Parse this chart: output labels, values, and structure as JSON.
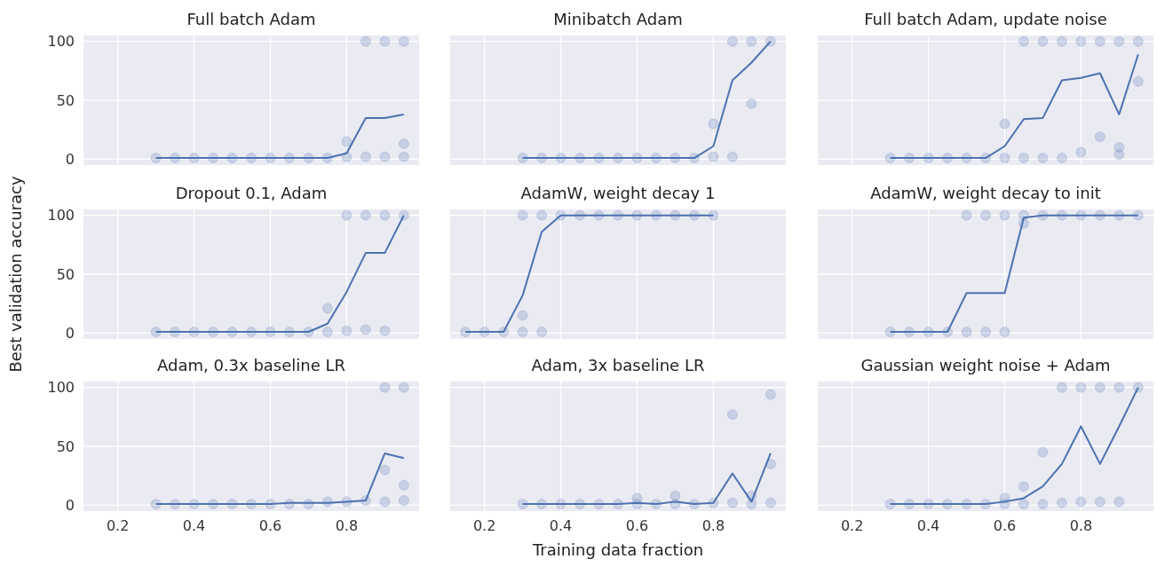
{
  "chart_data": [
    {
      "type": "line",
      "title": "Full batch Adam",
      "xlim": [
        0.11,
        0.99
      ],
      "ylim": [
        -5,
        105
      ],
      "xticks": [
        0.2,
        0.4,
        0.6,
        0.8
      ],
      "yticks": [
        0,
        50,
        100
      ],
      "grid": true,
      "tick_labels": "y",
      "series": [
        {
          "type": "scatter",
          "marker": "circle",
          "color": "#4c72b0",
          "x": [
            0.3,
            0.35,
            0.4,
            0.45,
            0.5,
            0.55,
            0.6,
            0.65,
            0.7,
            0.75,
            0.8,
            0.8,
            0.85,
            0.85,
            0.9,
            0.9,
            0.95,
            0.95,
            0.95
          ],
          "values": [
            1,
            1,
            1,
            1,
            1,
            1,
            1,
            1,
            1,
            1,
            15,
            2,
            100,
            2,
            100,
            2,
            100,
            13,
            2
          ]
        },
        {
          "type": "line",
          "color": "#4c72b0",
          "x": [
            0.3,
            0.35,
            0.4,
            0.45,
            0.5,
            0.55,
            0.6,
            0.65,
            0.7,
            0.75,
            0.8,
            0.85,
            0.9,
            0.95
          ],
          "values": [
            1,
            1,
            1,
            1,
            1,
            1,
            1,
            1,
            1,
            1,
            5,
            35,
            35,
            38
          ]
        }
      ]
    },
    {
      "type": "line",
      "title": "Minibatch Adam",
      "xlim": [
        0.11,
        0.99
      ],
      "ylim": [
        -5,
        105
      ],
      "xticks": [
        0.2,
        0.4,
        0.6,
        0.8
      ],
      "yticks": [
        0,
        50,
        100
      ],
      "grid": true,
      "tick_labels": false,
      "series": [
        {
          "type": "scatter",
          "marker": "circle",
          "color": "#4c72b0",
          "x": [
            0.3,
            0.35,
            0.4,
            0.45,
            0.5,
            0.55,
            0.6,
            0.65,
            0.7,
            0.75,
            0.8,
            0.8,
            0.85,
            0.85,
            0.9,
            0.9,
            0.95
          ],
          "values": [
            1,
            1,
            1,
            1,
            1,
            1,
            1,
            1,
            1,
            1,
            30,
            2,
            100,
            2,
            100,
            47,
            100
          ]
        },
        {
          "type": "line",
          "color": "#4c72b0",
          "x": [
            0.3,
            0.35,
            0.4,
            0.45,
            0.5,
            0.55,
            0.6,
            0.65,
            0.7,
            0.75,
            0.8,
            0.85,
            0.9,
            0.95
          ],
          "values": [
            1,
            1,
            1,
            1,
            1,
            1,
            1,
            1,
            1,
            1,
            11,
            67,
            82,
            100
          ]
        }
      ]
    },
    {
      "type": "line",
      "title": "Full batch Adam, update noise",
      "xlim": [
        0.11,
        0.99
      ],
      "ylim": [
        -5,
        105
      ],
      "xticks": [
        0.2,
        0.4,
        0.6,
        0.8
      ],
      "yticks": [
        0,
        50,
        100
      ],
      "grid": true,
      "tick_labels": false,
      "series": [
        {
          "type": "scatter",
          "marker": "circle",
          "color": "#4c72b0",
          "x": [
            0.3,
            0.35,
            0.4,
            0.45,
            0.5,
            0.55,
            0.6,
            0.6,
            0.65,
            0.65,
            0.7,
            0.7,
            0.75,
            0.75,
            0.8,
            0.8,
            0.85,
            0.85,
            0.9,
            0.9,
            0.9,
            0.95,
            0.95
          ],
          "values": [
            1,
            1,
            1,
            1,
            1,
            1,
            30,
            1,
            100,
            1,
            100,
            1,
            100,
            1,
            100,
            6,
            100,
            19,
            100,
            10,
            4,
            100,
            66
          ]
        },
        {
          "type": "line",
          "color": "#4c72b0",
          "x": [
            0.3,
            0.35,
            0.4,
            0.45,
            0.5,
            0.55,
            0.6,
            0.65,
            0.7,
            0.75,
            0.8,
            0.85,
            0.9,
            0.95
          ],
          "values": [
            1,
            1,
            1,
            1,
            1,
            1,
            11,
            34,
            35,
            67,
            69,
            73,
            38,
            89
          ]
        }
      ]
    },
    {
      "type": "line",
      "title": "Dropout 0.1, Adam",
      "ylabel": "Best validation accuracy",
      "xlim": [
        0.11,
        0.99
      ],
      "ylim": [
        -5,
        105
      ],
      "xticks": [
        0.2,
        0.4,
        0.6,
        0.8
      ],
      "yticks": [
        0,
        50,
        100
      ],
      "grid": true,
      "tick_labels": "y",
      "series": [
        {
          "type": "scatter",
          "marker": "circle",
          "color": "#4c72b0",
          "x": [
            0.3,
            0.35,
            0.4,
            0.45,
            0.5,
            0.55,
            0.6,
            0.65,
            0.7,
            0.75,
            0.75,
            0.8,
            0.8,
            0.85,
            0.85,
            0.9,
            0.9,
            0.95
          ],
          "values": [
            1,
            1,
            1,
            1,
            1,
            1,
            1,
            1,
            1,
            21,
            1,
            100,
            2,
            100,
            3,
            100,
            2,
            100
          ]
        },
        {
          "type": "line",
          "color": "#4c72b0",
          "x": [
            0.3,
            0.35,
            0.4,
            0.45,
            0.5,
            0.55,
            0.6,
            0.65,
            0.7,
            0.75,
            0.8,
            0.85,
            0.9,
            0.95
          ],
          "values": [
            1,
            1,
            1,
            1,
            1,
            1,
            1,
            1,
            1,
            8,
            35,
            68,
            68,
            100
          ]
        }
      ]
    },
    {
      "type": "line",
      "title": "AdamW, weight decay 1",
      "xlim": [
        0.11,
        0.99
      ],
      "ylim": [
        -5,
        105
      ],
      "xticks": [
        0.2,
        0.4,
        0.6,
        0.8
      ],
      "yticks": [
        0,
        50,
        100
      ],
      "grid": true,
      "tick_labels": false,
      "series": [
        {
          "type": "scatter",
          "marker": "circle",
          "color": "#4c72b0",
          "x": [
            0.15,
            0.2,
            0.25,
            0.3,
            0.3,
            0.3,
            0.35,
            0.35,
            0.4,
            0.45,
            0.5,
            0.55,
            0.6,
            0.65,
            0.7,
            0.75,
            0.8
          ],
          "values": [
            1,
            1,
            1,
            100,
            15,
            1,
            100,
            1,
            100,
            100,
            100,
            100,
            100,
            100,
            100,
            100,
            100
          ]
        },
        {
          "type": "line",
          "color": "#4c72b0",
          "x": [
            0.15,
            0.2,
            0.25,
            0.3,
            0.35,
            0.4,
            0.45,
            0.5,
            0.55,
            0.6,
            0.65,
            0.7,
            0.75,
            0.8
          ],
          "values": [
            1,
            1,
            1,
            32,
            86,
            100,
            100,
            100,
            100,
            100,
            100,
            100,
            100,
            100
          ]
        }
      ]
    },
    {
      "type": "line",
      "title": "AdamW, weight decay to init",
      "xlim": [
        0.11,
        0.99
      ],
      "ylim": [
        -5,
        105
      ],
      "xticks": [
        0.2,
        0.4,
        0.6,
        0.8
      ],
      "yticks": [
        0,
        50,
        100
      ],
      "grid": true,
      "tick_labels": false,
      "series": [
        {
          "type": "scatter",
          "marker": "circle",
          "color": "#4c72b0",
          "x": [
            0.3,
            0.35,
            0.4,
            0.45,
            0.5,
            0.5,
            0.55,
            0.55,
            0.6,
            0.6,
            0.65,
            0.65,
            0.7,
            0.75,
            0.8,
            0.85,
            0.9,
            0.95
          ],
          "values": [
            1,
            1,
            1,
            1,
            100,
            1,
            100,
            1,
            100,
            1,
            100,
            93,
            100,
            100,
            100,
            100,
            100,
            100
          ]
        },
        {
          "type": "line",
          "color": "#4c72b0",
          "x": [
            0.3,
            0.35,
            0.4,
            0.45,
            0.5,
            0.55,
            0.6,
            0.65,
            0.7,
            0.75,
            0.8,
            0.85,
            0.9,
            0.95
          ],
          "values": [
            1,
            1,
            1,
            1,
            34,
            34,
            34,
            98,
            100,
            100,
            100,
            100,
            100,
            100
          ]
        }
      ]
    },
    {
      "type": "line",
      "title": "Adam, 0.3x baseline LR",
      "xlim": [
        0.11,
        0.99
      ],
      "ylim": [
        -5,
        105
      ],
      "xticks": [
        0.2,
        0.4,
        0.6,
        0.8
      ],
      "yticks": [
        0,
        50,
        100
      ],
      "grid": true,
      "series": [
        {
          "type": "scatter",
          "marker": "circle",
          "color": "#4c72b0",
          "x": [
            0.3,
            0.35,
            0.4,
            0.45,
            0.5,
            0.55,
            0.6,
            0.65,
            0.7,
            0.75,
            0.8,
            0.85,
            0.9,
            0.9,
            0.9,
            0.95,
            0.95,
            0.95
          ],
          "values": [
            1,
            1,
            1,
            1,
            1,
            1,
            1,
            1,
            1,
            3,
            3,
            4,
            100,
            30,
            3,
            100,
            17,
            4
          ]
        },
        {
          "type": "line",
          "color": "#4c72b0",
          "x": [
            0.3,
            0.35,
            0.4,
            0.45,
            0.5,
            0.55,
            0.6,
            0.65,
            0.7,
            0.75,
            0.8,
            0.85,
            0.9,
            0.95
          ],
          "values": [
            1,
            1,
            1,
            1,
            1,
            1,
            1,
            2,
            2,
            2,
            3,
            4,
            44,
            40
          ]
        }
      ]
    },
    {
      "type": "line",
      "title": "Adam, 3x baseline LR",
      "xlabel": "Training data fraction",
      "xlim": [
        0.11,
        0.99
      ],
      "ylim": [
        -5,
        105
      ],
      "xticks": [
        0.2,
        0.4,
        0.6,
        0.8
      ],
      "yticks": [
        0,
        50,
        100
      ],
      "grid": true,
      "tick_labels": "x",
      "series": [
        {
          "type": "scatter",
          "marker": "circle",
          "color": "#4c72b0",
          "x": [
            0.3,
            0.35,
            0.4,
            0.45,
            0.5,
            0.55,
            0.6,
            0.6,
            0.65,
            0.7,
            0.7,
            0.75,
            0.8,
            0.85,
            0.85,
            0.9,
            0.9,
            0.95,
            0.95,
            0.95
          ],
          "values": [
            1,
            1,
            1,
            1,
            1,
            1,
            6,
            1,
            1,
            8,
            1,
            1,
            2,
            77,
            2,
            8,
            1,
            94,
            35,
            2
          ]
        },
        {
          "type": "line",
          "color": "#4c72b0",
          "x": [
            0.3,
            0.35,
            0.4,
            0.45,
            0.5,
            0.55,
            0.6,
            0.65,
            0.7,
            0.75,
            0.8,
            0.85,
            0.9,
            0.95
          ],
          "values": [
            1,
            1,
            1,
            1,
            1,
            1,
            2,
            1,
            3,
            1,
            2,
            27,
            3,
            44
          ]
        }
      ]
    },
    {
      "type": "line",
      "title": "Gaussian weight noise + Adam",
      "xlim": [
        0.11,
        0.99
      ],
      "ylim": [
        -5,
        105
      ],
      "xticks": [
        0.2,
        0.4,
        0.6,
        0.8
      ],
      "yticks": [
        0,
        50,
        100
      ],
      "grid": true,
      "tick_labels": "x",
      "series": [
        {
          "type": "scatter",
          "marker": "circle",
          "color": "#4c72b0",
          "x": [
            0.3,
            0.35,
            0.4,
            0.45,
            0.5,
            0.55,
            0.6,
            0.6,
            0.65,
            0.65,
            0.7,
            0.7,
            0.75,
            0.75,
            0.8,
            0.8,
            0.85,
            0.85,
            0.9,
            0.9,
            0.95
          ],
          "values": [
            1,
            1,
            1,
            1,
            1,
            1,
            6,
            1,
            16,
            1,
            45,
            1,
            100,
            2,
            100,
            3,
            100,
            3,
            100,
            3,
            100
          ]
        },
        {
          "type": "line",
          "color": "#4c72b0",
          "x": [
            0.3,
            0.35,
            0.4,
            0.45,
            0.5,
            0.55,
            0.6,
            0.65,
            0.7,
            0.75,
            0.8,
            0.85,
            0.9,
            0.95
          ],
          "values": [
            1,
            1,
            1,
            1,
            1,
            1,
            3,
            6,
            16,
            35,
            67,
            35,
            67,
            100
          ]
        }
      ]
    }
  ]
}
